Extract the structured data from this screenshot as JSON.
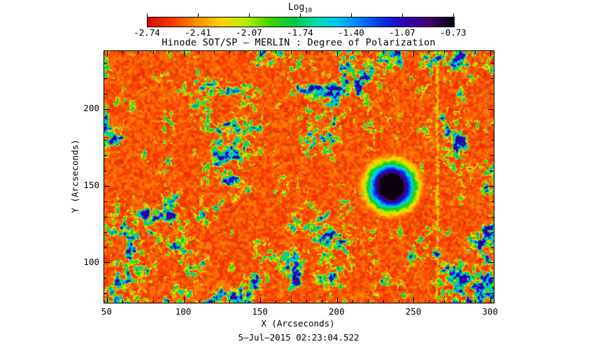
{
  "colorbar": {
    "title": "Log",
    "title_sub": "10",
    "tick_labels": [
      "-2.74",
      "-2.41",
      "-2.07",
      "-1.74",
      "-1.40",
      "-1.07",
      "-0.73"
    ]
  },
  "title": "Hinode SOT/SP – MERLIN : Degree of Polarization",
  "axes": {
    "xlabel": "X (Arcseconds)",
    "ylabel": "Y (Arcseconds)",
    "x_ticks": [
      50,
      100,
      150,
      200,
      250,
      300
    ],
    "y_ticks": [
      100,
      150,
      200
    ],
    "x_range": [
      48,
      302
    ],
    "y_range": [
      74,
      238
    ],
    "minor_tick_step": 10
  },
  "timestamp": "5–Jul–2015 02:23:04.522",
  "colors": {
    "background": "#ffffff",
    "axis": "#000000",
    "text": "#000000",
    "colormap_stops": [
      [
        0.0,
        "#d80d02"
      ],
      [
        0.08,
        "#f93b00"
      ],
      [
        0.16,
        "#ff8c00"
      ],
      [
        0.24,
        "#ffd300"
      ],
      [
        0.32,
        "#b8ee00"
      ],
      [
        0.4,
        "#44d400"
      ],
      [
        0.48,
        "#00c846"
      ],
      [
        0.55,
        "#00dfae"
      ],
      [
        0.62,
        "#00c8f0"
      ],
      [
        0.69,
        "#0080ff"
      ],
      [
        0.76,
        "#0038e8"
      ],
      [
        0.84,
        "#2a00b4"
      ],
      [
        0.92,
        "#47006e"
      ],
      [
        1.0,
        "#0a0010"
      ]
    ]
  },
  "chart_data": {
    "type": "heatmap",
    "title": "Hinode SOT/SP – MERLIN : Degree of Polarization",
    "xlabel": "X (Arcseconds)",
    "ylabel": "Y (Arcseconds)",
    "xlim": [
      48,
      302
    ],
    "ylim": [
      74,
      238
    ],
    "x_ticks": [
      50,
      100,
      150,
      200,
      250,
      300
    ],
    "y_ticks": [
      100,
      150,
      200
    ],
    "value_label": "Log10 Degree of Polarization",
    "value_range": [
      -2.74,
      -0.73
    ],
    "colorbar_ticks": [
      -2.74,
      -2.41,
      -2.07,
      -1.74,
      -1.4,
      -1.07,
      -0.73
    ],
    "colorbar_position": "top",
    "grid": false,
    "colormap_description": "rainbow: red = low polarization (-2.74), through yellow/green/cyan/blue, to purple-black = high polarization (-0.73)",
    "timestamp": "5–Jul–2015 02:23:04.522",
    "features": [
      {
        "name": "quiet-sun background",
        "value_log10": -2.7,
        "color": "red",
        "coverage": "majority (~60%) of field"
      },
      {
        "name": "granulation speckle",
        "value_log10": -2.4,
        "color": "orange/yellow flecks",
        "scale_arcsec": 2
      },
      {
        "name": "magnetic network",
        "value_log10": -1.9,
        "color": "green/cyan filamentary patches",
        "distribution": "clustered lanes across the field"
      },
      {
        "name": "strong network elements",
        "value_log10": -1.2,
        "color": "blue knots embedded in network"
      },
      {
        "name": "sunspot pore",
        "center_x_arcsec": 235,
        "center_y_arcsec": 150,
        "core_radius_arcsec": 8,
        "halo_radius_arcsec": 22,
        "core_value_log10": -0.73,
        "color": "black/purple core ringed by blue, cyan and green halo"
      },
      {
        "name": "vertical artifact stripe",
        "x_arcsec": 265,
        "color": "faint green/cyan speckled column"
      }
    ]
  }
}
